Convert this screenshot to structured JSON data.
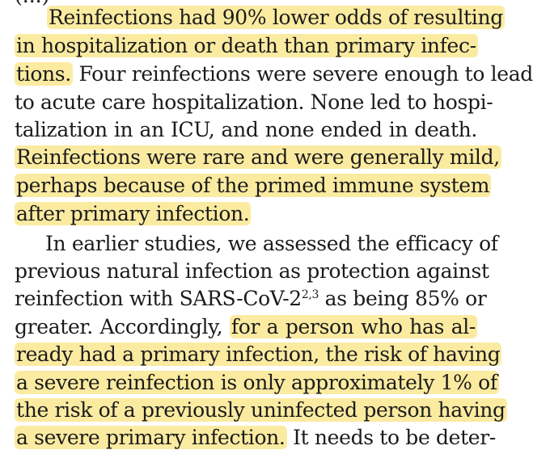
{
  "top_fragment": "(...)",
  "paragraph1": {
    "l1_hl": "Reinfections had 90% lower odds of resulting",
    "l2_hl": "in hospitalization or death than primary infec-",
    "l3_hl": "tions.",
    "l3_rest": " Four reinfections were severe enough to lead",
    "l4": "to acute care hospitalization. None led to hospi-",
    "l5": "talization in an ICU, and none ended in death.",
    "l6_hl": "Reinfections were rare and were generally mild,",
    "l7_hl": "perhaps because of the primed immune system",
    "l8_hl": "after primary infection."
  },
  "paragraph2": {
    "l1": "In earlier studies, we assessed the efficacy of",
    "l2": "previous natural infection as protection against",
    "l3_pre": "reinfection with SARS-CoV-2",
    "l3_sup": "2,3",
    "l3_post": " as being 85% or",
    "l4_pre": "greater. Accordingly, ",
    "l4_hl": "for a person who has al-",
    "l5_hl": "ready had a primary infection, the risk of having",
    "l6_hl": "a severe reinfection is only approximately 1% of",
    "l7_hl": "the risk of a previously uninfected person having",
    "l8_hl": "a severe primary infection.",
    "l8_rest": " It needs to be deter-"
  },
  "highlight_color": "#fbeba1"
}
